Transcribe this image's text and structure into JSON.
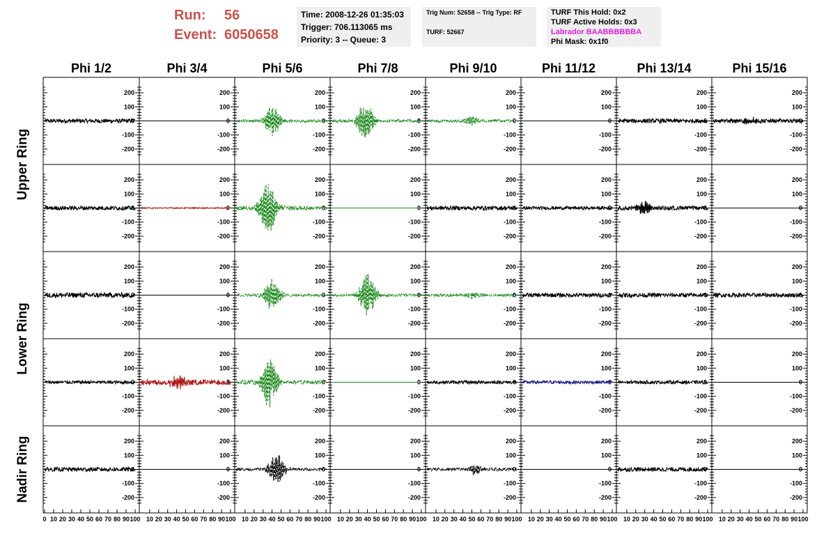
{
  "header": {
    "run_label": "Run:",
    "run_value": "56",
    "event_label": "Event:",
    "event_value": "6050658",
    "time": "Time: 2008-12-26 01:35:03",
    "trigger": "Trigger: 706.113065 ms",
    "priority_queue": "Priority: 3 -- Queue: 3",
    "trig_num_type": "Trig Num: 52658 -- Trig Type: RF",
    "turf": "TURF: 52667",
    "turf_this_hold": "TURF This Hold: 0x2",
    "turf_active_holds": "TURF Active Holds: 0x3",
    "labrador": "Labrador BAABBBBBBA",
    "phi_mask": "Phi Mask: 0x1f0"
  },
  "colors": {
    "header_red": "#c9524a",
    "labrador_magenta": "#e020e0",
    "info_box_bg": "#efefef",
    "trace_black": "#000000",
    "trace_green": "#1f8a1f",
    "trace_red": "#b01818",
    "trace_blue": "#1a1a8a"
  },
  "chart_data": {
    "type": "line",
    "columns": [
      "Phi 1/2",
      "Phi 3/4",
      "Phi 5/6",
      "Phi 7/8",
      "Phi 9/10",
      "Phi 11/12",
      "Phi 13/14",
      "Phi 15/16"
    ],
    "row_groups": [
      {
        "label": "Upper Ring",
        "rows": [
          0,
          1
        ]
      },
      {
        "label": "Lower Ring",
        "rows": [
          2,
          3
        ]
      },
      {
        "label": "Nadir Ring",
        "rows": [
          4
        ]
      }
    ],
    "xlim": [
      0,
      100
    ],
    "ylim": [
      -250,
      250
    ],
    "x_ticks": [
      "0",
      "10",
      "20",
      "30",
      "40",
      "50",
      "60",
      "70",
      "80",
      "90",
      "100"
    ],
    "y_ticks": [
      200,
      100,
      0,
      -100,
      -200
    ],
    "grid": false,
    "panels": [
      [
        {
          "color": "black",
          "style": "solid",
          "noise": 15,
          "burst_center": 0,
          "burst_amp": 0
        },
        {
          "color": "black",
          "style": "flat",
          "noise": 0,
          "burst_center": 0,
          "burst_amp": 0
        },
        {
          "color": "green",
          "style": "dashed",
          "noise": 10,
          "burst_center": 40,
          "burst_amp": 120
        },
        {
          "color": "green",
          "style": "dashed",
          "noise": 10,
          "burst_center": 38,
          "burst_amp": 150
        },
        {
          "color": "green",
          "style": "dashed",
          "noise": 10,
          "burst_center": 50,
          "burst_amp": 35
        },
        {
          "color": "black",
          "style": "flat",
          "noise": 0,
          "burst_center": 0,
          "burst_amp": 0
        },
        {
          "color": "black",
          "style": "solid",
          "noise": 15,
          "burst_center": 0,
          "burst_amp": 0
        },
        {
          "color": "black",
          "style": "solid",
          "noise": 15,
          "burst_center": 40,
          "burst_amp": 25
        }
      ],
      [
        {
          "color": "black",
          "style": "solid",
          "noise": 15,
          "burst_center": 0,
          "burst_amp": 0
        },
        {
          "color": "red",
          "style": "solid",
          "noise": 4,
          "burst_center": 0,
          "burst_amp": 0
        },
        {
          "color": "green",
          "style": "dashed",
          "noise": 15,
          "burst_center": 35,
          "burst_amp": 220
        },
        {
          "color": "green",
          "style": "flat",
          "noise": 0,
          "burst_center": 0,
          "burst_amp": 0
        },
        {
          "color": "black",
          "style": "solid",
          "noise": 15,
          "burst_center": 0,
          "burst_amp": 0
        },
        {
          "color": "black",
          "style": "solid",
          "noise": 12,
          "burst_center": 0,
          "burst_amp": 0
        },
        {
          "color": "black",
          "style": "solid",
          "noise": 15,
          "burst_center": 30,
          "burst_amp": 50
        },
        {
          "color": "black",
          "style": "flat",
          "noise": 0,
          "burst_center": 0,
          "burst_amp": 0
        }
      ],
      [
        {
          "color": "black",
          "style": "solid",
          "noise": 18,
          "burst_center": 0,
          "burst_amp": 0
        },
        {
          "color": "black",
          "style": "flat",
          "noise": 0,
          "burst_center": 0,
          "burst_amp": 0
        },
        {
          "color": "green",
          "style": "dashed",
          "noise": 10,
          "burst_center": 40,
          "burst_amp": 130
        },
        {
          "color": "green",
          "style": "dashed",
          "noise": 10,
          "burst_center": 40,
          "burst_amp": 160
        },
        {
          "color": "green",
          "style": "dashed",
          "noise": 10,
          "burst_center": 50,
          "burst_amp": 25
        },
        {
          "color": "black",
          "style": "solid",
          "noise": 15,
          "burst_center": 0,
          "burst_amp": 0
        },
        {
          "color": "black",
          "style": "solid",
          "noise": 15,
          "burst_center": 0,
          "burst_amp": 0
        },
        {
          "color": "black",
          "style": "solid",
          "noise": 15,
          "burst_center": 0,
          "burst_amp": 0
        }
      ],
      [
        {
          "color": "black",
          "style": "solid",
          "noise": 12,
          "burst_center": 0,
          "burst_amp": 0
        },
        {
          "color": "red",
          "style": "solid",
          "noise": 20,
          "burst_center": 42,
          "burst_amp": 55
        },
        {
          "color": "green",
          "style": "dashed",
          "noise": 15,
          "burst_center": 37,
          "burst_amp": 190
        },
        {
          "color": "green",
          "style": "flat",
          "noise": 0,
          "burst_center": 0,
          "burst_amp": 0
        },
        {
          "color": "black",
          "style": "solid",
          "noise": 12,
          "burst_center": 0,
          "burst_amp": 0
        },
        {
          "color": "blue",
          "style": "solid",
          "noise": 12,
          "burst_center": 0,
          "burst_amp": 0
        },
        {
          "color": "black",
          "style": "solid",
          "noise": 12,
          "burst_center": 0,
          "burst_amp": 0
        },
        {
          "color": "black",
          "style": "flat",
          "noise": 0,
          "burst_center": 0,
          "burst_amp": 0
        }
      ],
      [
        {
          "color": "black",
          "style": "solid",
          "noise": 15,
          "burst_center": 0,
          "burst_amp": 0
        },
        {
          "color": "black",
          "style": "flat",
          "noise": 0,
          "burst_center": 0,
          "burst_amp": 0
        },
        {
          "color": "black",
          "style": "dashed",
          "noise": 10,
          "burst_center": 45,
          "burst_amp": 120
        },
        {
          "color": "black",
          "style": "flat",
          "noise": 0,
          "burst_center": 0,
          "burst_amp": 0
        },
        {
          "color": "black",
          "style": "dashed",
          "noise": 10,
          "burst_center": 55,
          "burst_amp": 40
        },
        {
          "color": "black",
          "style": "flat",
          "noise": 0,
          "burst_center": 0,
          "burst_amp": 0
        },
        {
          "color": "black",
          "style": "solid",
          "noise": 15,
          "burst_center": 0,
          "burst_amp": 0
        },
        {
          "color": "black",
          "style": "flat",
          "noise": 0,
          "burst_center": 0,
          "burst_amp": 0
        }
      ]
    ]
  }
}
